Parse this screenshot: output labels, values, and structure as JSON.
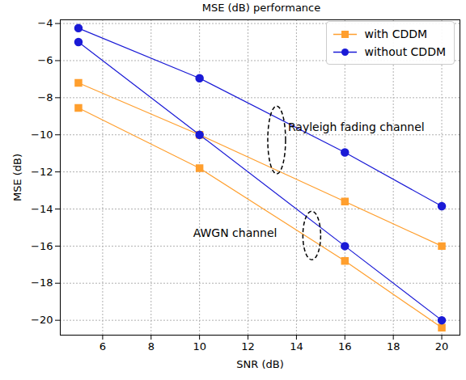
{
  "chart_data": {
    "type": "line",
    "title": "MSE (dB) performance",
    "x_label": "SNR (dB)",
    "y_label": "MSE (dB)",
    "xlim": [
      4.25,
      20.75
    ],
    "xticks": [
      6,
      8,
      10,
      12,
      14,
      16,
      18,
      20
    ],
    "ylim": [
      -20.8,
      -3.8
    ],
    "yticks": [
      -20,
      -18,
      -16,
      -14,
      -12,
      -10,
      -8,
      -6,
      -4
    ],
    "grid": true,
    "legend": "upper right",
    "series": [
      {
        "name": "with CDDM",
        "color": "#ff9f2e",
        "marker": "square",
        "x": [
          5,
          10,
          16,
          20
        ],
        "values": [
          -7.2,
          -10.0,
          -13.6,
          -16.0
        ]
      },
      {
        "name": "with CDDM",
        "color": "#ff9f2e",
        "marker": "square",
        "x": [
          5,
          10,
          16,
          20
        ],
        "values": [
          -8.55,
          -11.8,
          -16.8,
          -20.4
        ]
      },
      {
        "name": "without CDDM",
        "color": "#1a1ad6",
        "marker": "circle",
        "x": [
          5,
          10,
          16,
          20
        ],
        "values": [
          -4.25,
          -6.95,
          -10.95,
          -13.85
        ]
      },
      {
        "name": "without CDDM",
        "color": "#1a1ad6",
        "marker": "circle",
        "x": [
          5,
          10,
          16,
          20
        ],
        "values": [
          -5.0,
          -10.0,
          -16.0,
          -20.0
        ]
      }
    ],
    "annotations": [
      {
        "text": "Rayleigh fading channel",
        "x": 13.65,
        "y": -9.6
      },
      {
        "text": "AWGN channel",
        "x": 13.2,
        "y": -15.3
      }
    ]
  }
}
